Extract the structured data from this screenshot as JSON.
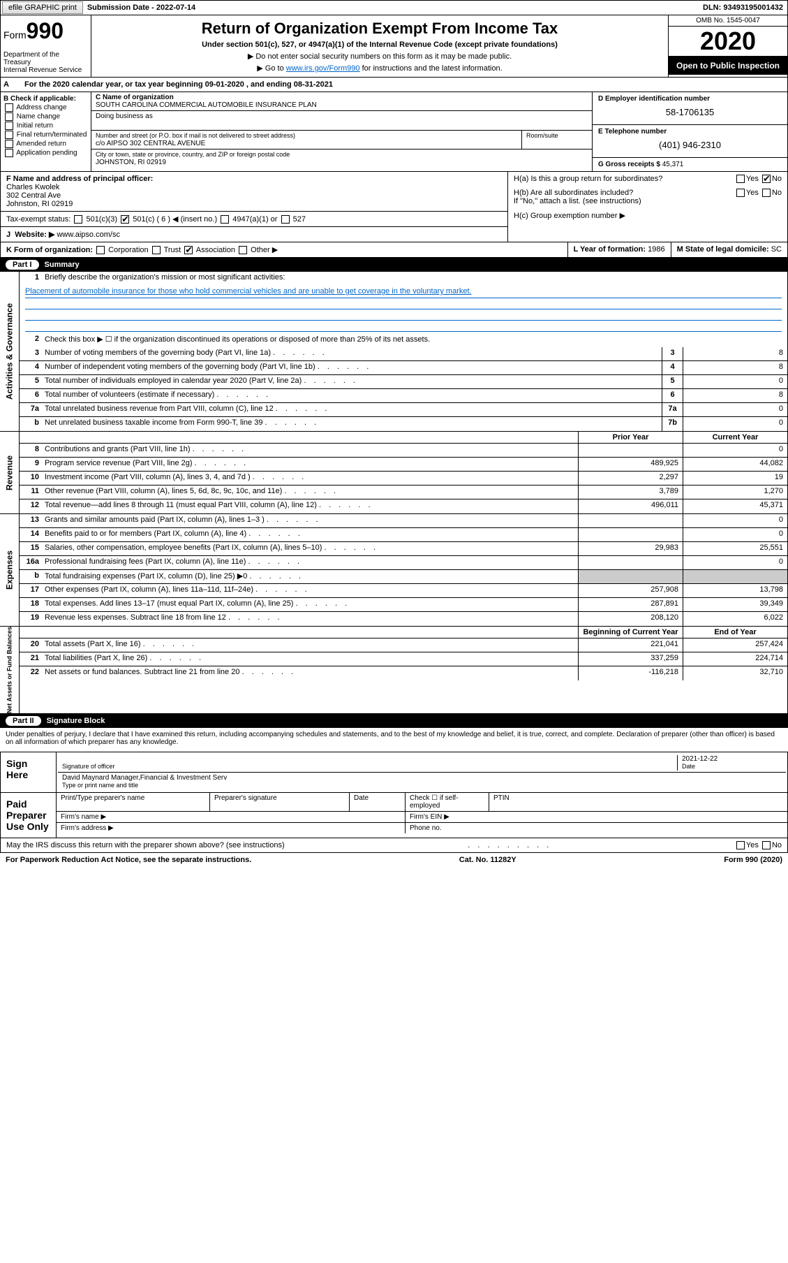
{
  "topbar": {
    "efile": "efile GRAPHIC print",
    "subdate_lbl": "Submission Date - ",
    "subdate": "2022-07-14",
    "dln_lbl": "DLN: ",
    "dln": "93493195001432"
  },
  "header": {
    "form_label": "Form",
    "form_num": "990",
    "dept": "Department of the Treasury\nInternal Revenue Service",
    "title": "Return of Organization Exempt From Income Tax",
    "subtitle": "Under section 501(c), 527, or 4947(a)(1) of the Internal Revenue Code (except private foundations)",
    "arrow1": "▶ Do not enter social security numbers on this form as it may be made public.",
    "arrow2_pre": "▶ Go to ",
    "arrow2_link": "www.irs.gov/Form990",
    "arrow2_post": " for instructions and the latest information.",
    "omb": "OMB No. 1545-0047",
    "year": "2020",
    "open": "Open to Public Inspection"
  },
  "rowA": "For the 2020 calendar year, or tax year beginning 09-01-2020    , and ending 08-31-2021",
  "boxB": {
    "lbl": "B Check if applicable:",
    "items": [
      "Address change",
      "Name change",
      "Initial return",
      "Final return/terminated",
      "Amended return",
      "Application pending"
    ]
  },
  "boxC": {
    "name_lbl": "C Name of organization",
    "name": "SOUTH CAROLINA COMMERCIAL AUTOMOBILE INSURANCE PLAN",
    "dba_lbl": "Doing business as",
    "addr_lbl": "Number and street (or P.O. box if mail is not delivered to street address)",
    "addr": "c/o AIPSO 302 CENTRAL AVENUE",
    "room_lbl": "Room/suite",
    "city_lbl": "City or town, state or province, country, and ZIP or foreign postal code",
    "city": "JOHNSTON, RI  02919"
  },
  "boxD": {
    "lbl": "D Employer identification number",
    "val": "58-1706135"
  },
  "boxE": {
    "lbl": "E Telephone number",
    "val": "(401) 946-2310"
  },
  "boxG": {
    "lbl": "G Gross receipts $",
    "val": "45,371"
  },
  "boxF": {
    "lbl": "F  Name and address of principal officer:",
    "name": "Charles Kwolek",
    "addr1": "302 Central Ave",
    "addr2": "Johnston, RI  02919"
  },
  "boxH": {
    "a": "H(a)  Is this a group return for subordinates?",
    "b": "H(b)  Are all subordinates included?",
    "bnote": "If \"No,\" attach a list. (see instructions)",
    "c": "H(c)  Group exemption number ▶"
  },
  "taxexempt": {
    "lbl": "Tax-exempt status:",
    "o1": "501(c)(3)",
    "o2": "501(c) ( 6 ) ◀ (insert no.)",
    "o3": "4947(a)(1) or",
    "o4": "527"
  },
  "rowJ": {
    "lbl": "J",
    "web_lbl": "Website: ▶",
    "web": "www.aipso.com/sc"
  },
  "rowK": {
    "lbl": "K Form of organization:",
    "o1": "Corporation",
    "o2": "Trust",
    "o3": "Association",
    "o4": "Other ▶"
  },
  "rowL": {
    "lbl": "L Year of formation:",
    "val": "1986"
  },
  "rowM": {
    "lbl": "M State of legal domicile:",
    "val": "SC"
  },
  "part1": {
    "num": "Part I",
    "title": "Summary"
  },
  "mission": {
    "lbl": "Briefly describe the organization's mission or most significant activities:",
    "text": "Placement of automobile insurance for those who hold commercial vehicles and are unable to get coverage in the voluntary market."
  },
  "line2": "Check this box ▶ ☐  if the organization discontinued its operations or disposed of more than 25% of its net assets.",
  "summary_lines": [
    {
      "n": "3",
      "d": "Number of voting members of the governing body (Part VI, line 1a)",
      "b": "3",
      "v": "8"
    },
    {
      "n": "4",
      "d": "Number of independent voting members of the governing body (Part VI, line 1b)",
      "b": "4",
      "v": "8"
    },
    {
      "n": "5",
      "d": "Total number of individuals employed in calendar year 2020 (Part V, line 2a)",
      "b": "5",
      "v": "0"
    },
    {
      "n": "6",
      "d": "Total number of volunteers (estimate if necessary)",
      "b": "6",
      "v": "8"
    },
    {
      "n": "7a",
      "d": "Total unrelated business revenue from Part VIII, column (C), line 12",
      "b": "7a",
      "v": "0"
    },
    {
      "n": "b",
      "d": "Net unrelated business taxable income from Form 990-T, line 39",
      "b": "7b",
      "v": "0"
    }
  ],
  "hdr_prior": "Prior Year",
  "hdr_current": "Current Year",
  "revenue_lines": [
    {
      "n": "8",
      "d": "Contributions and grants (Part VIII, line 1h)",
      "p": "",
      "c": "0"
    },
    {
      "n": "9",
      "d": "Program service revenue (Part VIII, line 2g)",
      "p": "489,925",
      "c": "44,082"
    },
    {
      "n": "10",
      "d": "Investment income (Part VIII, column (A), lines 3, 4, and 7d )",
      "p": "2,297",
      "c": "19"
    },
    {
      "n": "11",
      "d": "Other revenue (Part VIII, column (A), lines 5, 6d, 8c, 9c, 10c, and 11e)",
      "p": "3,789",
      "c": "1,270"
    },
    {
      "n": "12",
      "d": "Total revenue—add lines 8 through 11 (must equal Part VIII, column (A), line 12)",
      "p": "496,011",
      "c": "45,371"
    }
  ],
  "expense_lines": [
    {
      "n": "13",
      "d": "Grants and similar amounts paid (Part IX, column (A), lines 1–3 )",
      "p": "",
      "c": "0"
    },
    {
      "n": "14",
      "d": "Benefits paid to or for members (Part IX, column (A), line 4)",
      "p": "",
      "c": "0"
    },
    {
      "n": "15",
      "d": "Salaries, other compensation, employee benefits (Part IX, column (A), lines 5–10)",
      "p": "29,983",
      "c": "25,551"
    },
    {
      "n": "16a",
      "d": "Professional fundraising fees (Part IX, column (A), line 11e)",
      "p": "",
      "c": "0"
    },
    {
      "n": "b",
      "d": "Total fundraising expenses (Part IX, column (D), line 25) ▶0",
      "p": "shade",
      "c": "shade"
    },
    {
      "n": "17",
      "d": "Other expenses (Part IX, column (A), lines 11a–11d, 11f–24e)",
      "p": "257,908",
      "c": "13,798"
    },
    {
      "n": "18",
      "d": "Total expenses. Add lines 13–17 (must equal Part IX, column (A), line 25)",
      "p": "287,891",
      "c": "39,349"
    },
    {
      "n": "19",
      "d": "Revenue less expenses. Subtract line 18 from line 12",
      "p": "208,120",
      "c": "6,022"
    }
  ],
  "hdr_begin": "Beginning of Current Year",
  "hdr_end": "End of Year",
  "net_lines": [
    {
      "n": "20",
      "d": "Total assets (Part X, line 16)",
      "p": "221,041",
      "c": "257,424"
    },
    {
      "n": "21",
      "d": "Total liabilities (Part X, line 26)",
      "p": "337,259",
      "c": "224,714"
    },
    {
      "n": "22",
      "d": "Net assets or fund balances. Subtract line 21 from line 20",
      "p": "-116,218",
      "c": "32,710"
    }
  ],
  "vtabs": {
    "ag": "Activities & Governance",
    "rev": "Revenue",
    "exp": "Expenses",
    "net": "Net Assets or Fund Balances"
  },
  "part2": {
    "num": "Part II",
    "title": "Signature Block"
  },
  "penalty": "Under penalties of perjury, I declare that I have examined this return, including accompanying schedules and statements, and to the best of my knowledge and belief, it is true, correct, and complete. Declaration of preparer (other than officer) is based on all information of which preparer has any knowledge.",
  "sign": {
    "lbl": "Sign Here",
    "sig_lbl": "Signature of officer",
    "date_lbl": "Date",
    "date": "2021-12-22",
    "name": "David Maynard Manager,Financial & Investment Serv",
    "name_lbl": "Type or print name and title"
  },
  "paid": {
    "lbl": "Paid Preparer Use Only",
    "h1": "Print/Type preparer's name",
    "h2": "Preparer's signature",
    "h3": "Date",
    "h4": "Check ☐ if self-employed",
    "h5": "PTIN",
    "firm_name": "Firm's name    ▶",
    "firm_ein": "Firm's EIN ▶",
    "firm_addr": "Firm's address ▶",
    "phone": "Phone no."
  },
  "discuss": "May the IRS discuss this return with the preparer shown above? (see instructions)",
  "footer": {
    "l": "For Paperwork Reduction Act Notice, see the separate instructions.",
    "m": "Cat. No. 11282Y",
    "r": "Form 990 (2020)"
  }
}
